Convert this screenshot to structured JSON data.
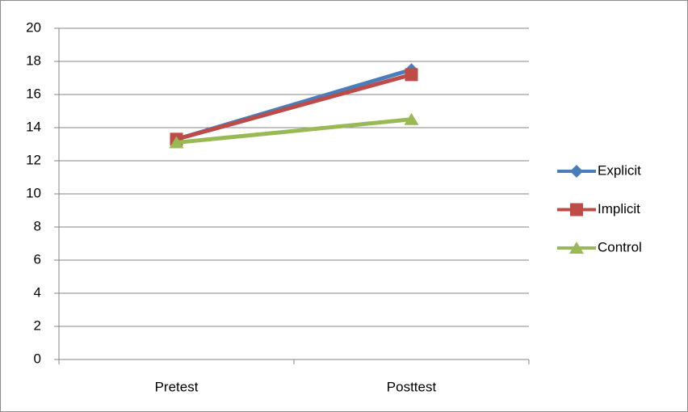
{
  "chart_data": {
    "type": "line",
    "categories": [
      "Pretest",
      "Posttest"
    ],
    "series": [
      {
        "name": "Explicit",
        "color": "#4a7ebb",
        "marker": "diamond",
        "values": [
          13.3,
          17.5
        ]
      },
      {
        "name": "Implicit",
        "color": "#be4b48",
        "marker": "square",
        "values": [
          13.3,
          17.2
        ]
      },
      {
        "name": "Control",
        "color": "#98b954",
        "marker": "triangle",
        "values": [
          13.1,
          14.5
        ]
      }
    ],
    "ylim": [
      0,
      20
    ],
    "yticks": [
      0,
      2,
      4,
      6,
      8,
      10,
      12,
      14,
      16,
      18,
      20
    ],
    "grid": true,
    "legend": "right"
  }
}
